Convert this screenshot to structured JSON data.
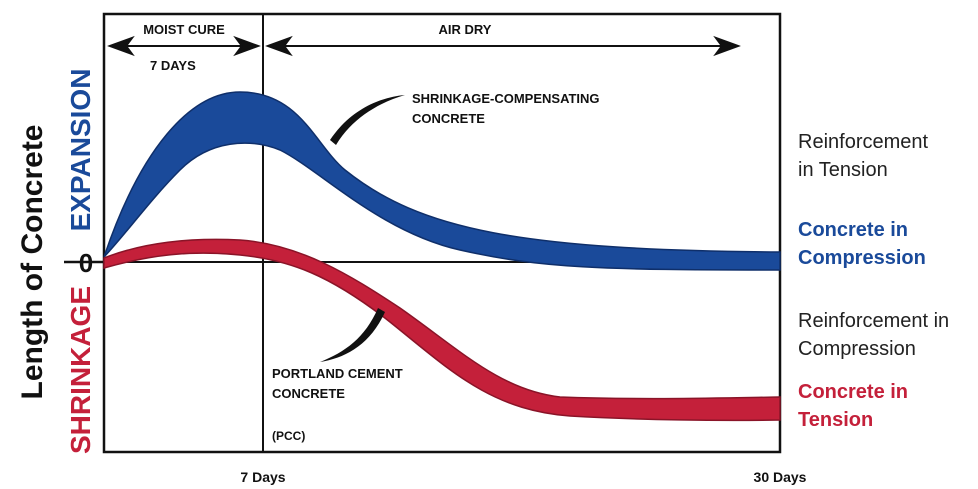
{
  "diagram": {
    "y_axis_title": "Length of Concrete",
    "y_positive_label": "EXPANSION",
    "y_negative_label": "SHRINKAGE",
    "zero_label": "0",
    "x_tick_1": "7 Days",
    "x_tick_2": "30 Days",
    "phase_1_label_line1": "MOIST CURE",
    "phase_1_label_line2": "7 DAYS",
    "phase_2_label": "AIR DRY",
    "shrinkage_comp_label_line1": "SHRINKAGE-COMPENSATING",
    "shrinkage_comp_label_line2": "CONCRETE",
    "pcc_label_line1": "PORTLAND CEMENT",
    "pcc_label_line2": "CONCRETE",
    "pcc_abbrev": "(PCC)"
  },
  "notes": {
    "reinforcement_tension_line1": "Reinforcement",
    "reinforcement_tension_line2": "in Tension",
    "concrete_compression_line1": "Concrete in",
    "concrete_compression_line2": "Compression",
    "reinforcement_compression_line1": "Reinforcement in",
    "reinforcement_compression_line2": "Compression",
    "concrete_tension_line1": "Concrete in",
    "concrete_tension_line2": "Tension"
  },
  "colors": {
    "expansion_blue": "#1a4a9a",
    "shrinkage_red": "#c4203a",
    "frame_black": "#111111"
  }
}
